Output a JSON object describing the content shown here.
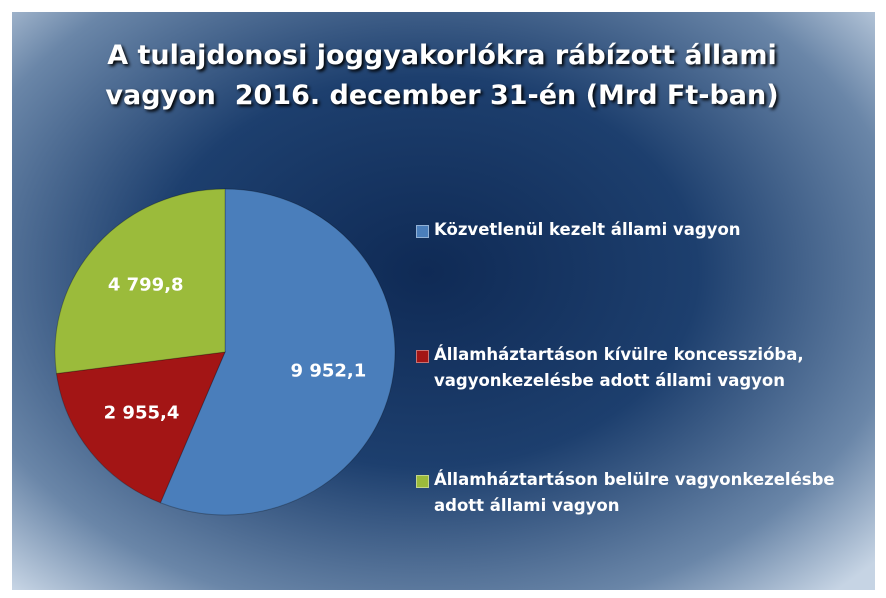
{
  "chart_data": {
    "type": "pie",
    "title": "A tulajdonosi joggyakorlókra rábízott állami vagyon  2016. december 31-én (Mrd Ft-ban)",
    "categories": [
      "Közvetlenül kezelt állami vagyon",
      "Államháztartáson kívülre koncesszióba, vagyonkezelésbe adott állami vagyon",
      "Államháztartáson belülre vagyonkezelésbe adott állami vagyon"
    ],
    "values": [
      9952.1,
      2955.4,
      4799.8
    ],
    "value_labels": [
      "9 952,1",
      "2 955,4",
      "4 799,8"
    ],
    "colors": [
      "#4a7ebb",
      "#a31515",
      "#9bbb3b"
    ],
    "legend": "right"
  }
}
